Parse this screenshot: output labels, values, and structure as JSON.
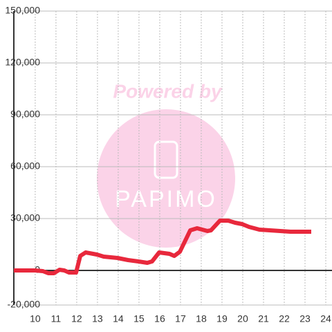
{
  "chart_data": {
    "type": "line",
    "annotations": [
      "Powered by",
      "PAPIMO"
    ],
    "x": [
      8.97,
      10,
      10.37,
      10.63,
      10.9,
      11.17,
      11.4,
      11.63,
      11.97,
      12.17,
      12.43,
      12.97,
      13.3,
      13.97,
      14.47,
      14.97,
      15.4,
      15.63,
      15.97,
      16.47,
      16.7,
      16.97,
      17.47,
      17.8,
      18.3,
      18.47,
      18.9,
      19.3,
      19.63,
      19.97,
      20.3,
      20.8,
      21.3,
      21.8,
      22.3,
      23.3
    ],
    "series": [
      {
        "color": "#e8283c",
        "values": [
          0,
          0,
          -400,
          -1600,
          -1600,
          400,
          0,
          -1200,
          -1200,
          8400,
          10400,
          9200,
          8000,
          7200,
          6000,
          5200,
          4400,
          5200,
          10400,
          9600,
          8400,
          10800,
          23200,
          24400,
          22800,
          23200,
          28800,
          28800,
          27600,
          26800,
          25200,
          23600,
          23200,
          22800,
          22400,
          22400
        ]
      }
    ],
    "xlim": [
      8.97,
      24.3
    ],
    "xticks": [
      10,
      11,
      12,
      13,
      14,
      15,
      16,
      17,
      18,
      19,
      20,
      21,
      22,
      23,
      24
    ],
    "ylim": [
      -20000,
      150000
    ],
    "yticks": [
      {
        "value": -20000,
        "label": "-20,000"
      },
      0,
      {
        "value": 30000,
        "label": "30,000"
      },
      {
        "value": 60000,
        "label": "60,000"
      },
      {
        "value": 90000,
        "label": "90,000"
      },
      {
        "value": 120000,
        "label": "120,000"
      },
      {
        "value": 150000,
        "label": "150,000"
      }
    ],
    "grid": true
  }
}
